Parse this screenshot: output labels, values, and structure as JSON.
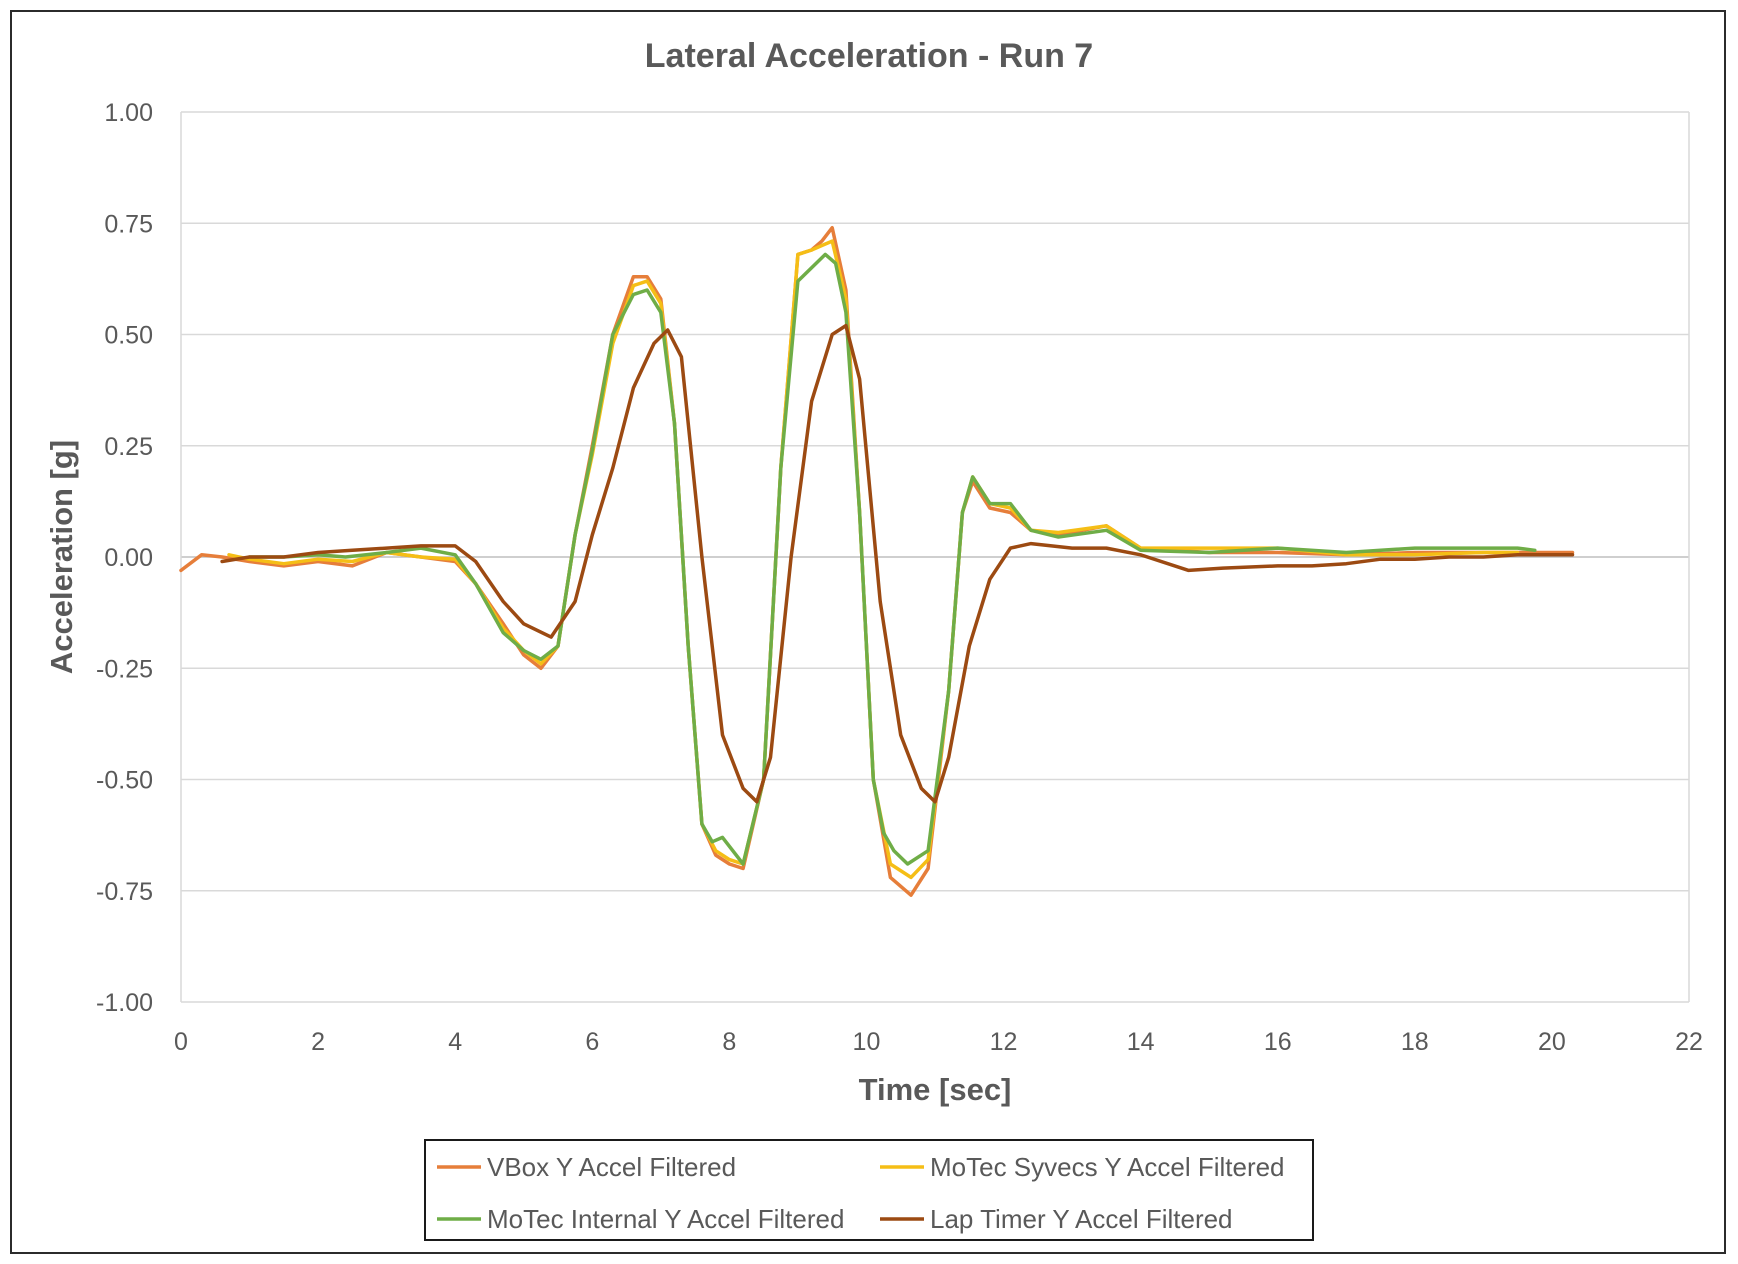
{
  "colors": {
    "vbox": "#E67E3A",
    "syvecs": "#F5BE16",
    "internal": "#6FAD47",
    "laptimer": "#9C4A12",
    "grid": "#d9d9d9",
    "text": "#595959"
  },
  "chart_data": {
    "type": "line",
    "title": "Lateral Acceleration - Run 7",
    "xlabel": "Time [sec]",
    "ylabel": "Acceleration [g]",
    "xlim": [
      0,
      22
    ],
    "ylim": [
      -1.0,
      1.0
    ],
    "x_ticks": [
      "0",
      "2",
      "4",
      "6",
      "8",
      "10",
      "12",
      "14",
      "16",
      "18",
      "20",
      "22"
    ],
    "y_ticks": [
      "1.00",
      "0.75",
      "0.50",
      "0.25",
      "0.00",
      "-0.25",
      "-0.50",
      "-0.75",
      "-1.00"
    ],
    "grid": "horizontal",
    "legend_position": "bottom",
    "series": [
      {
        "name": "VBox Y Accel Filtered",
        "color_key": "vbox",
        "points": [
          [
            0,
            -0.03
          ],
          [
            0.3,
            0.005
          ],
          [
            0.6,
            0.0
          ],
          [
            1.0,
            -0.01
          ],
          [
            1.5,
            -0.02
          ],
          [
            2.0,
            -0.01
          ],
          [
            2.5,
            -0.02
          ],
          [
            3.0,
            0.01
          ],
          [
            3.5,
            0.0
          ],
          [
            4.0,
            -0.01
          ],
          [
            4.3,
            -0.06
          ],
          [
            4.7,
            -0.15
          ],
          [
            5.0,
            -0.22
          ],
          [
            5.25,
            -0.25
          ],
          [
            5.5,
            -0.2
          ],
          [
            5.75,
            0.05
          ],
          [
            6.0,
            0.25
          ],
          [
            6.3,
            0.5
          ],
          [
            6.6,
            0.63
          ],
          [
            6.8,
            0.63
          ],
          [
            7.0,
            0.58
          ],
          [
            7.2,
            0.3
          ],
          [
            7.4,
            -0.2
          ],
          [
            7.6,
            -0.6
          ],
          [
            7.8,
            -0.67
          ],
          [
            8.0,
            -0.69
          ],
          [
            8.2,
            -0.7
          ],
          [
            8.5,
            -0.5
          ],
          [
            8.75,
            0.2
          ],
          [
            9.0,
            0.68
          ],
          [
            9.2,
            0.69
          ],
          [
            9.35,
            0.71
          ],
          [
            9.5,
            0.74
          ],
          [
            9.7,
            0.6
          ],
          [
            9.9,
            0.1
          ],
          [
            10.1,
            -0.5
          ],
          [
            10.35,
            -0.72
          ],
          [
            10.65,
            -0.76
          ],
          [
            10.9,
            -0.7
          ],
          [
            11.2,
            -0.3
          ],
          [
            11.4,
            0.1
          ],
          [
            11.55,
            0.17
          ],
          [
            11.8,
            0.11
          ],
          [
            12.1,
            0.1
          ],
          [
            12.4,
            0.06
          ],
          [
            12.8,
            0.05
          ],
          [
            13.5,
            0.07
          ],
          [
            14.0,
            0.02
          ],
          [
            15.0,
            0.01
          ],
          [
            16.0,
            0.01
          ],
          [
            17.0,
            0.005
          ],
          [
            18.0,
            0.01
          ],
          [
            19.0,
            0.01
          ],
          [
            20.0,
            0.01
          ],
          [
            20.3,
            0.01
          ]
        ]
      },
      {
        "name": "MoTec Syvecs Y Accel Filtered",
        "color_key": "syvecs",
        "points": [
          [
            0.7,
            0.005
          ],
          [
            1.0,
            -0.005
          ],
          [
            1.5,
            -0.015
          ],
          [
            2.0,
            -0.005
          ],
          [
            2.5,
            -0.01
          ],
          [
            3.0,
            0.01
          ],
          [
            3.5,
            0.0
          ],
          [
            4.0,
            -0.005
          ],
          [
            4.3,
            -0.06
          ],
          [
            4.7,
            -0.16
          ],
          [
            5.0,
            -0.21
          ],
          [
            5.25,
            -0.24
          ],
          [
            5.5,
            -0.2
          ],
          [
            5.75,
            0.05
          ],
          [
            6.0,
            0.23
          ],
          [
            6.3,
            0.48
          ],
          [
            6.6,
            0.61
          ],
          [
            6.8,
            0.62
          ],
          [
            7.0,
            0.57
          ],
          [
            7.2,
            0.3
          ],
          [
            7.4,
            -0.2
          ],
          [
            7.6,
            -0.6
          ],
          [
            7.8,
            -0.66
          ],
          [
            8.0,
            -0.68
          ],
          [
            8.2,
            -0.69
          ],
          [
            8.5,
            -0.5
          ],
          [
            8.75,
            0.2
          ],
          [
            9.0,
            0.68
          ],
          [
            9.2,
            0.69
          ],
          [
            9.35,
            0.7
          ],
          [
            9.5,
            0.71
          ],
          [
            9.7,
            0.58
          ],
          [
            9.9,
            0.1
          ],
          [
            10.1,
            -0.5
          ],
          [
            10.35,
            -0.69
          ],
          [
            10.65,
            -0.72
          ],
          [
            10.9,
            -0.68
          ],
          [
            11.2,
            -0.3
          ],
          [
            11.4,
            0.1
          ],
          [
            11.55,
            0.18
          ],
          [
            11.8,
            0.12
          ],
          [
            12.1,
            0.11
          ],
          [
            12.4,
            0.06
          ],
          [
            12.8,
            0.055
          ],
          [
            13.5,
            0.07
          ],
          [
            14.0,
            0.02
          ],
          [
            15.0,
            0.02
          ],
          [
            16.0,
            0.02
          ],
          [
            17.0,
            0.005
          ],
          [
            18.0,
            0.005
          ],
          [
            19.0,
            0.01
          ],
          [
            19.5,
            0.01
          ]
        ]
      },
      {
        "name": "MoTec Internal Y Accel Filtered",
        "color_key": "internal",
        "points": [
          [
            1.0,
            0.0
          ],
          [
            1.5,
            0.0
          ],
          [
            2.0,
            0.005
          ],
          [
            2.4,
            0.0
          ],
          [
            3.0,
            0.01
          ],
          [
            3.5,
            0.02
          ],
          [
            4.0,
            0.005
          ],
          [
            4.3,
            -0.06
          ],
          [
            4.7,
            -0.17
          ],
          [
            5.0,
            -0.21
          ],
          [
            5.25,
            -0.23
          ],
          [
            5.5,
            -0.2
          ],
          [
            5.75,
            0.05
          ],
          [
            6.0,
            0.24
          ],
          [
            6.3,
            0.5
          ],
          [
            6.6,
            0.59
          ],
          [
            6.8,
            0.6
          ],
          [
            7.0,
            0.55
          ],
          [
            7.2,
            0.3
          ],
          [
            7.4,
            -0.2
          ],
          [
            7.6,
            -0.6
          ],
          [
            7.75,
            -0.64
          ],
          [
            7.9,
            -0.63
          ],
          [
            8.2,
            -0.69
          ],
          [
            8.5,
            -0.5
          ],
          [
            8.75,
            0.2
          ],
          [
            9.0,
            0.62
          ],
          [
            9.2,
            0.65
          ],
          [
            9.4,
            0.68
          ],
          [
            9.55,
            0.66
          ],
          [
            9.7,
            0.55
          ],
          [
            9.9,
            0.1
          ],
          [
            10.1,
            -0.5
          ],
          [
            10.25,
            -0.62
          ],
          [
            10.4,
            -0.66
          ],
          [
            10.6,
            -0.69
          ],
          [
            10.9,
            -0.66
          ],
          [
            11.2,
            -0.3
          ],
          [
            11.4,
            0.1
          ],
          [
            11.55,
            0.18
          ],
          [
            11.8,
            0.12
          ],
          [
            12.1,
            0.12
          ],
          [
            12.4,
            0.06
          ],
          [
            12.8,
            0.045
          ],
          [
            13.5,
            0.06
          ],
          [
            14.0,
            0.015
          ],
          [
            15.0,
            0.01
          ],
          [
            16.0,
            0.02
          ],
          [
            17.0,
            0.01
          ],
          [
            18.0,
            0.02
          ],
          [
            19.0,
            0.02
          ],
          [
            19.5,
            0.02
          ],
          [
            19.75,
            0.015
          ]
        ]
      },
      {
        "name": "Lap Timer Y Accel Filtered",
        "color_key": "laptimer",
        "points": [
          [
            0.6,
            -0.01
          ],
          [
            1.0,
            0.0
          ],
          [
            1.5,
            0.0
          ],
          [
            2.0,
            0.01
          ],
          [
            2.5,
            0.015
          ],
          [
            3.0,
            0.02
          ],
          [
            3.5,
            0.025
          ],
          [
            4.0,
            0.025
          ],
          [
            4.3,
            -0.01
          ],
          [
            4.7,
            -0.1
          ],
          [
            5.0,
            -0.15
          ],
          [
            5.4,
            -0.18
          ],
          [
            5.75,
            -0.1
          ],
          [
            6.0,
            0.05
          ],
          [
            6.3,
            0.2
          ],
          [
            6.6,
            0.38
          ],
          [
            6.9,
            0.48
          ],
          [
            7.1,
            0.51
          ],
          [
            7.3,
            0.45
          ],
          [
            7.6,
            0.0
          ],
          [
            7.9,
            -0.4
          ],
          [
            8.2,
            -0.52
          ],
          [
            8.4,
            -0.55
          ],
          [
            8.6,
            -0.45
          ],
          [
            8.9,
            0.0
          ],
          [
            9.2,
            0.35
          ],
          [
            9.5,
            0.5
          ],
          [
            9.7,
            0.52
          ],
          [
            9.9,
            0.4
          ],
          [
            10.2,
            -0.1
          ],
          [
            10.5,
            -0.4
          ],
          [
            10.8,
            -0.52
          ],
          [
            11.0,
            -0.55
          ],
          [
            11.2,
            -0.45
          ],
          [
            11.5,
            -0.2
          ],
          [
            11.8,
            -0.05
          ],
          [
            12.1,
            0.02
          ],
          [
            12.4,
            0.03
          ],
          [
            13.0,
            0.02
          ],
          [
            13.5,
            0.02
          ],
          [
            14.0,
            0.005
          ],
          [
            14.7,
            -0.03
          ],
          [
            15.2,
            -0.025
          ],
          [
            16.0,
            -0.02
          ],
          [
            16.5,
            -0.02
          ],
          [
            17.0,
            -0.015
          ],
          [
            17.5,
            -0.005
          ],
          [
            18.0,
            -0.005
          ],
          [
            18.5,
            0.0
          ],
          [
            19.0,
            0.0
          ],
          [
            19.5,
            0.005
          ],
          [
            20.0,
            0.005
          ],
          [
            20.3,
            0.005
          ]
        ]
      }
    ]
  }
}
